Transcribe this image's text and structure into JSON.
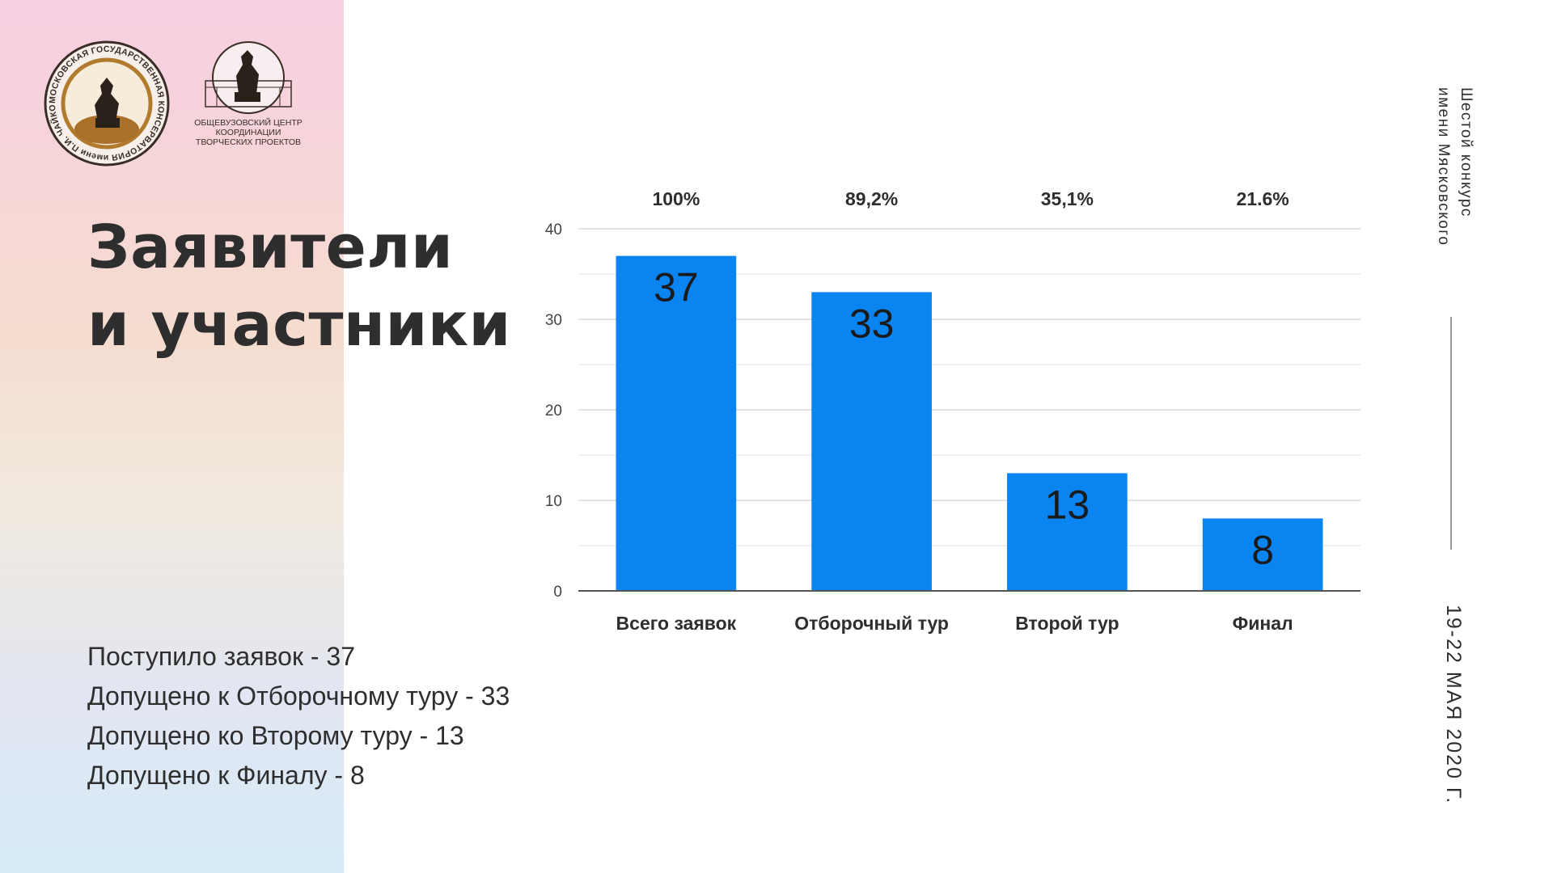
{
  "logos": {
    "conservatory": {
      "name": "conservatory-logo",
      "ring_text": "МОСКОВСКАЯ ГОСУДАРСТВЕННАЯ КОНСЕРВАТОРИЯ имени П.И. ЧАЙКОВСКОГО"
    },
    "center": {
      "name": "creative-projects-center-logo",
      "caption_lines": [
        "ОБЩЕВУЗОВСКИЙ ЦЕНТР",
        "КООРДИНАЦИИ",
        "ТВОРЧЕСКИХ ПРОЕКТОВ"
      ]
    }
  },
  "title_lines": [
    "Заявители",
    "и участники"
  ],
  "stats": [
    "Поступило заявок - 37",
    "Допущено к Отборочному туру - 33",
    "Допущено ко Второму туру - 13",
    "Допущено к Финалу - 8"
  ],
  "event_lines": [
    "Шестой конкурс",
    "имени Мясковского"
  ],
  "event_date": "19-22 МАЯ 2020 Г.",
  "colors": {
    "bar": "#0a84f0",
    "grid": "#d9d9d9",
    "axis": "#555555",
    "text": "#2e2e2e"
  },
  "chart_data": {
    "type": "bar",
    "categories": [
      "Всего заявок",
      "Отборочный тур",
      "Второй тур",
      "Финал"
    ],
    "values": [
      37,
      33,
      13,
      8
    ],
    "data_labels": [
      "37",
      "33",
      "13",
      "8"
    ],
    "percent_labels": [
      "100%",
      "89,2%",
      "35,1%",
      "21.6%"
    ],
    "y_ticks": [
      0,
      10,
      20,
      30,
      40
    ],
    "ylim": [
      0,
      40
    ],
    "title": "",
    "xlabel": "",
    "ylabel": "",
    "grid": true,
    "legend": "none"
  }
}
